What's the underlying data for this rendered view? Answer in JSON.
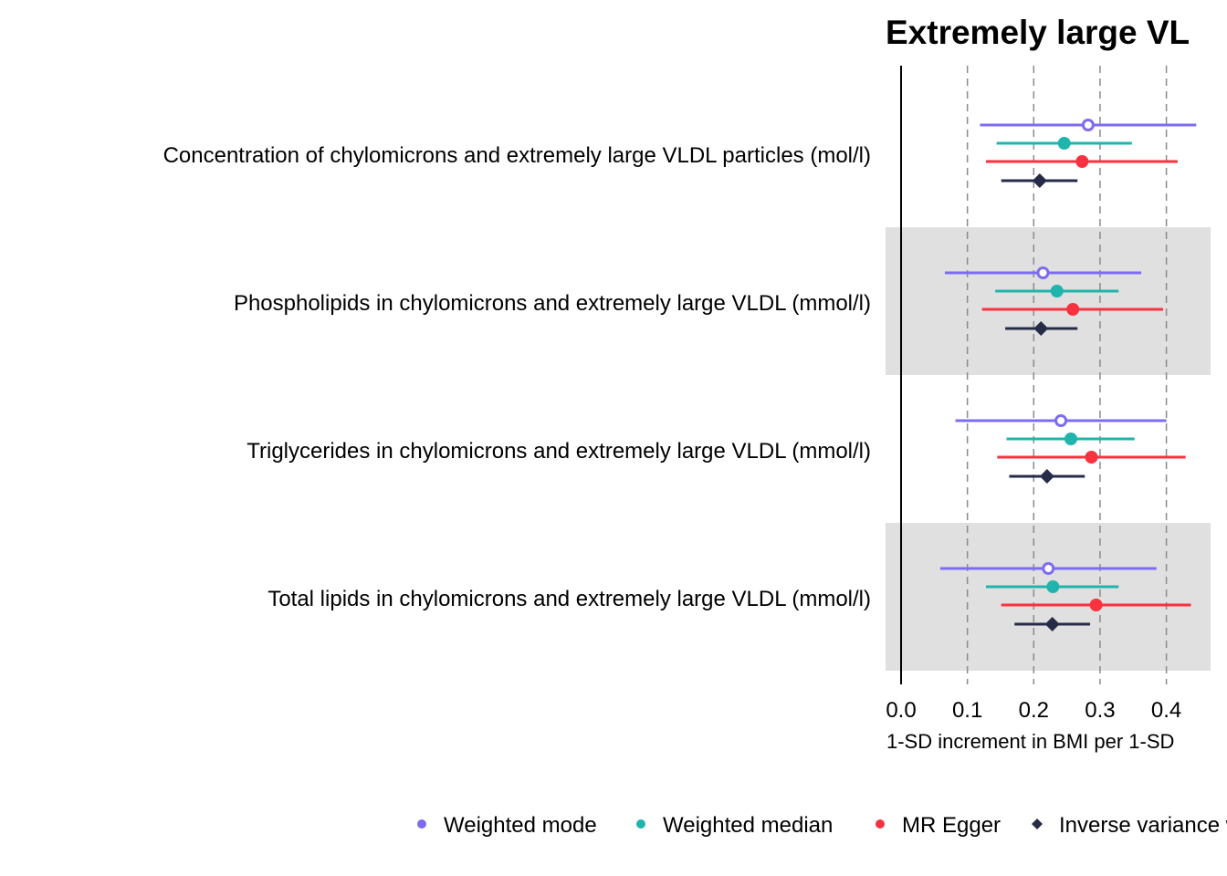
{
  "chart_data": {
    "type": "forest",
    "title": "Extremely large VL",
    "xlabel": "1-SD increment in BMI per 1-SD",
    "x_ticks": [
      "0.0",
      "0.1",
      "0.2",
      "0.3",
      "0.4"
    ],
    "x_tick_values": [
      0.0,
      0.1,
      0.2,
      0.3,
      0.4
    ],
    "xlim": [
      -0.023,
      0.47
    ],
    "grid": "dashed vertical at 0.1, 0.2, 0.3, 0.4; solid reference line at 0",
    "legend_position": "bottom",
    "categories": [
      "Concentration of chylomicrons and extremely large VLDL particles (mol/l)",
      "Phospholipids in chylomicrons and extremely large VLDL (mmol/l)",
      "Triglycerides in chylomicrons and extremely large VLDL (mmol/l)",
      "Total lipids in chylomicrons and extremely large VLDL (mmol/l)"
    ],
    "series": [
      {
        "name": "Weighted mode",
        "color": "#7B6CF2",
        "marker": "open-circle",
        "estimates": [
          0.282,
          0.214,
          0.241,
          0.222
        ],
        "lower": [
          0.119,
          0.066,
          0.082,
          0.059
        ],
        "upper": [
          0.445,
          0.362,
          0.4,
          0.385
        ]
      },
      {
        "name": "Weighted median",
        "color": "#1FB5AC",
        "marker": "filled-circle",
        "estimates": [
          0.246,
          0.235,
          0.256,
          0.229
        ],
        "lower": [
          0.144,
          0.142,
          0.159,
          0.128
        ],
        "upper": [
          0.348,
          0.328,
          0.352,
          0.328
        ]
      },
      {
        "name": "MR Egger",
        "color": "#F8323F",
        "marker": "filled-circle",
        "estimates": [
          0.273,
          0.259,
          0.287,
          0.294
        ],
        "lower": [
          0.128,
          0.122,
          0.145,
          0.151
        ],
        "upper": [
          0.417,
          0.395,
          0.429,
          0.437
        ]
      },
      {
        "name": "Inverse variance weighted",
        "color": "#262C48",
        "marker": "filled-diamond",
        "estimates": [
          0.209,
          0.211,
          0.22,
          0.228
        ],
        "lower": [
          0.151,
          0.157,
          0.163,
          0.171
        ],
        "upper": [
          0.266,
          0.266,
          0.277,
          0.285
        ]
      }
    ]
  }
}
